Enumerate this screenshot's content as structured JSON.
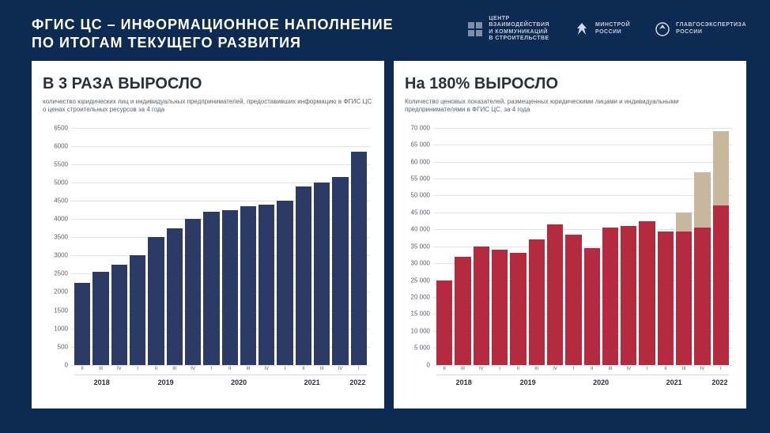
{
  "page": {
    "title_line1": "ФГИС ЦС – ИНФОРМАЦИОННОЕ  НАПОЛНЕНИЕ",
    "title_line2": "ПО ИТОГАМ ТЕКУЩЕГО  РАЗВИТИЯ"
  },
  "logos": {
    "center": {
      "line1": "ЦЕНТР",
      "line2": "ВЗАИМОДЕЙСТВИЯ",
      "line3": "И КОММУНИКАЦИЙ",
      "line4": "В СТРОИТЕЛЬСТВЕ"
    },
    "minstroy": {
      "line1": "МИНСТРОЙ",
      "line2": "РОССИИ"
    },
    "glavgos": {
      "line1": "ГЛАВГОСЭКСПЕРТИЗА",
      "line2": "РОССИИ"
    }
  },
  "chart_left": {
    "type": "bar",
    "headline": "В 3 РАЗА ВЫРОСЛО",
    "subtitle": "количество юридических лиц и индивидуальных предпринимателей, предоставивших информацию в ФГИС ЦС о ценах строительных ресурсов за 4 года",
    "y": {
      "min": 0,
      "max": 6500,
      "step": 500,
      "format": "plain"
    },
    "bar_color": "#2c3a66",
    "grid_color": "#e0e3e8",
    "bg_color": "#ffffff",
    "x_labels": [
      "II",
      "III",
      "IV",
      "I",
      "II",
      "III",
      "IV",
      "I",
      "II",
      "III",
      "IV",
      "I",
      "II",
      "III",
      "IV",
      "I"
    ],
    "years": [
      {
        "label": "2018",
        "span": 3
      },
      {
        "label": "2019",
        "span": 4
      },
      {
        "label": "2020",
        "span": 4
      },
      {
        "label": "2021",
        "span": 4
      },
      {
        "label": "2022",
        "span": 1
      }
    ],
    "values": [
      2250,
      2550,
      2750,
      3000,
      3500,
      3750,
      4000,
      4200,
      4250,
      4350,
      4400,
      4500,
      4900,
      5000,
      5150,
      5850
    ],
    "value_labels": [
      "",
      "",
      "",
      "",
      "",
      "",
      "",
      "",
      "",
      "",
      "",
      "",
      "",
      "",
      "",
      ""
    ]
  },
  "chart_right": {
    "type": "stacked-bar",
    "headline": "На 180% ВЫРОСЛО",
    "subtitle": "Количество ценовых показателей, размещенных юридическими лицами и индивидуальными предпринимателями в ФГИС ЦС, за 4 года",
    "y": {
      "min": 0,
      "max": 70000,
      "step": 5000,
      "format": "space"
    },
    "bar_color": "#b42a3e",
    "extra_color": "#c7b79e",
    "grid_color": "#e0e3e8",
    "bg_color": "#ffffff",
    "x_labels": [
      "II",
      "III",
      "IV",
      "I",
      "II",
      "III",
      "IV",
      "I",
      "II",
      "III",
      "IV",
      "I",
      "II",
      "III",
      "IV",
      "I"
    ],
    "years": [
      {
        "label": "2018",
        "span": 3
      },
      {
        "label": "2019",
        "span": 4
      },
      {
        "label": "2020",
        "span": 4
      },
      {
        "label": "2021",
        "span": 4
      },
      {
        "label": "2022",
        "span": 1
      }
    ],
    "values": [
      25000,
      32000,
      35000,
      34000,
      33000,
      37000,
      41500,
      38500,
      34500,
      40500,
      41000,
      42500,
      39500,
      39500,
      40500,
      47000
    ],
    "extra_values": [
      0,
      0,
      0,
      0,
      0,
      0,
      0,
      0,
      0,
      0,
      0,
      0,
      0,
      5500,
      16500,
      22000
    ],
    "value_labels": [
      "",
      "",
      "",
      "",
      "",
      "",
      "",
      "",
      "",
      "",
      "",
      "",
      "",
      "",
      "",
      ""
    ],
    "extra_labels": [
      "",
      "",
      "",
      "",
      "",
      "",
      "",
      "",
      "",
      "",
      "",
      "",
      "",
      "",
      "",
      ""
    ]
  }
}
